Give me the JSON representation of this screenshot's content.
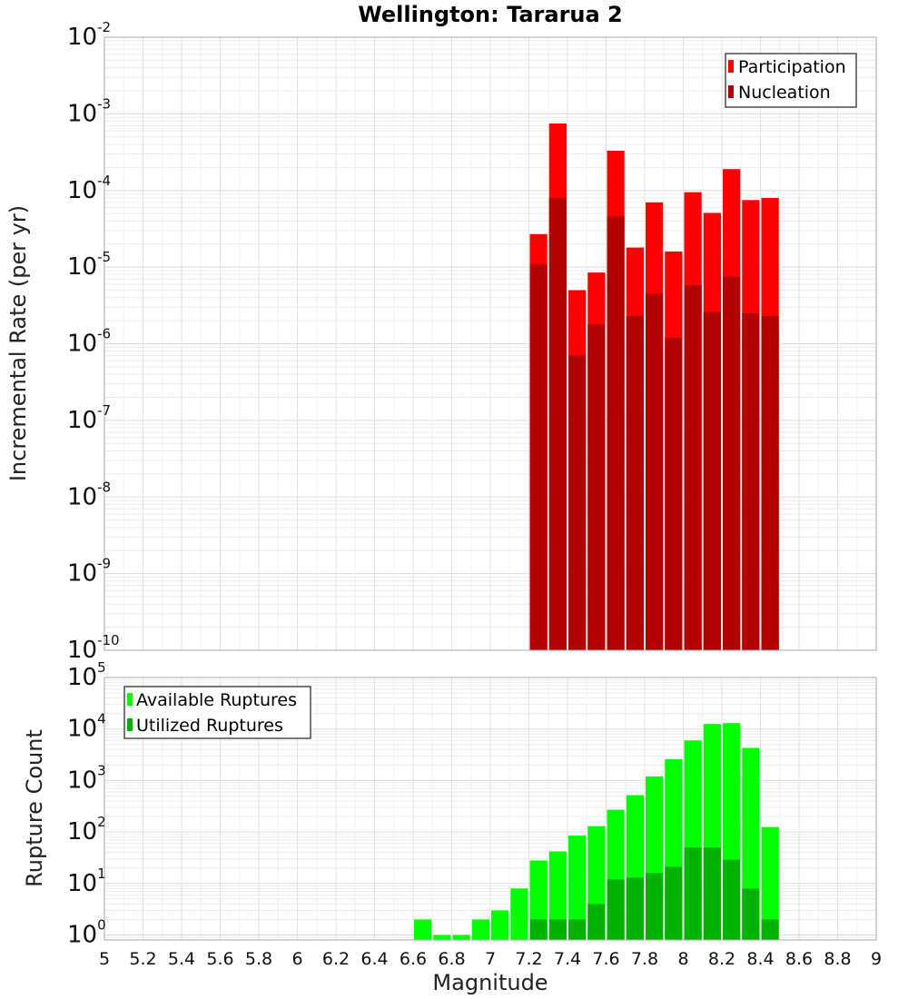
{
  "chart_title": "Wellington: Tararua 2",
  "x_axis_label": "Magnitude",
  "x_ticks": [
    "5",
    "5.2",
    "5.4",
    "5.6",
    "5.8",
    "6",
    "6.2",
    "6.4",
    "6.6",
    "6.8",
    "7",
    "7.2",
    "7.4",
    "7.6",
    "7.8",
    "8",
    "8.2",
    "8.4",
    "8.6",
    "8.8",
    "9"
  ],
  "chart_data": [
    {
      "type": "bar",
      "panel": "top",
      "ylabel": "Incremental Rate (per yr)",
      "yscale": "log",
      "xlim": [
        5,
        9
      ],
      "ylim": [
        1e-10,
        0.01
      ],
      "y_tick_exponents": [
        "-10",
        "-9",
        "-8",
        "-7",
        "-6",
        "-5",
        "-4",
        "-3",
        "-2"
      ],
      "legend_position": "top-right",
      "x": [
        7.25,
        7.35,
        7.45,
        7.55,
        7.65,
        7.75,
        7.85,
        7.95,
        8.05,
        8.15,
        8.25,
        8.35,
        8.45
      ],
      "series": [
        {
          "name": "Participation",
          "color": "#ff0000",
          "values": [
            2.7e-05,
            0.00075,
            5e-06,
            8.5e-06,
            0.00033,
            1.8e-05,
            7e-05,
            1.6e-05,
            9.5e-05,
            5.1e-05,
            0.00019,
            7.5e-05,
            8e-05
          ]
        },
        {
          "name": "Nucleation",
          "color": "#b30000",
          "values": [
            1.1e-05,
            8e-05,
            7e-07,
            1.8e-06,
            4.6e-05,
            2.3e-06,
            4.5e-06,
            1.2e-06,
            5.8e-06,
            2.6e-06,
            7.5e-06,
            2.5e-06,
            2.3e-06
          ]
        }
      ]
    },
    {
      "type": "bar",
      "panel": "bottom",
      "ylabel": "Rupture Count",
      "yscale": "log",
      "xlim": [
        5,
        9
      ],
      "ylim": [
        0.8,
        100000.0
      ],
      "y_tick_exponents": [
        "0",
        "1",
        "2",
        "3",
        "4",
        "5"
      ],
      "legend_position": "top-left",
      "x": [
        6.65,
        6.75,
        6.85,
        6.95,
        7.05,
        7.15,
        7.25,
        7.35,
        7.45,
        7.55,
        7.65,
        7.75,
        7.85,
        7.95,
        8.05,
        8.15,
        8.25,
        8.35,
        8.45
      ],
      "series": [
        {
          "name": "Available Ruptures",
          "color": "#00ff00",
          "values": [
            2,
            1,
            1,
            2,
            3,
            8,
            28,
            42,
            85,
            130,
            270,
            520,
            1200,
            2600,
            6000,
            12500,
            13000,
            4300,
            125
          ]
        },
        {
          "name": "Utilized Ruptures",
          "color": "#00b300",
          "values": [
            null,
            null,
            null,
            null,
            null,
            null,
            2,
            2,
            2,
            4,
            12,
            13,
            16,
            21,
            50,
            50,
            29,
            8,
            2
          ]
        }
      ]
    }
  ]
}
